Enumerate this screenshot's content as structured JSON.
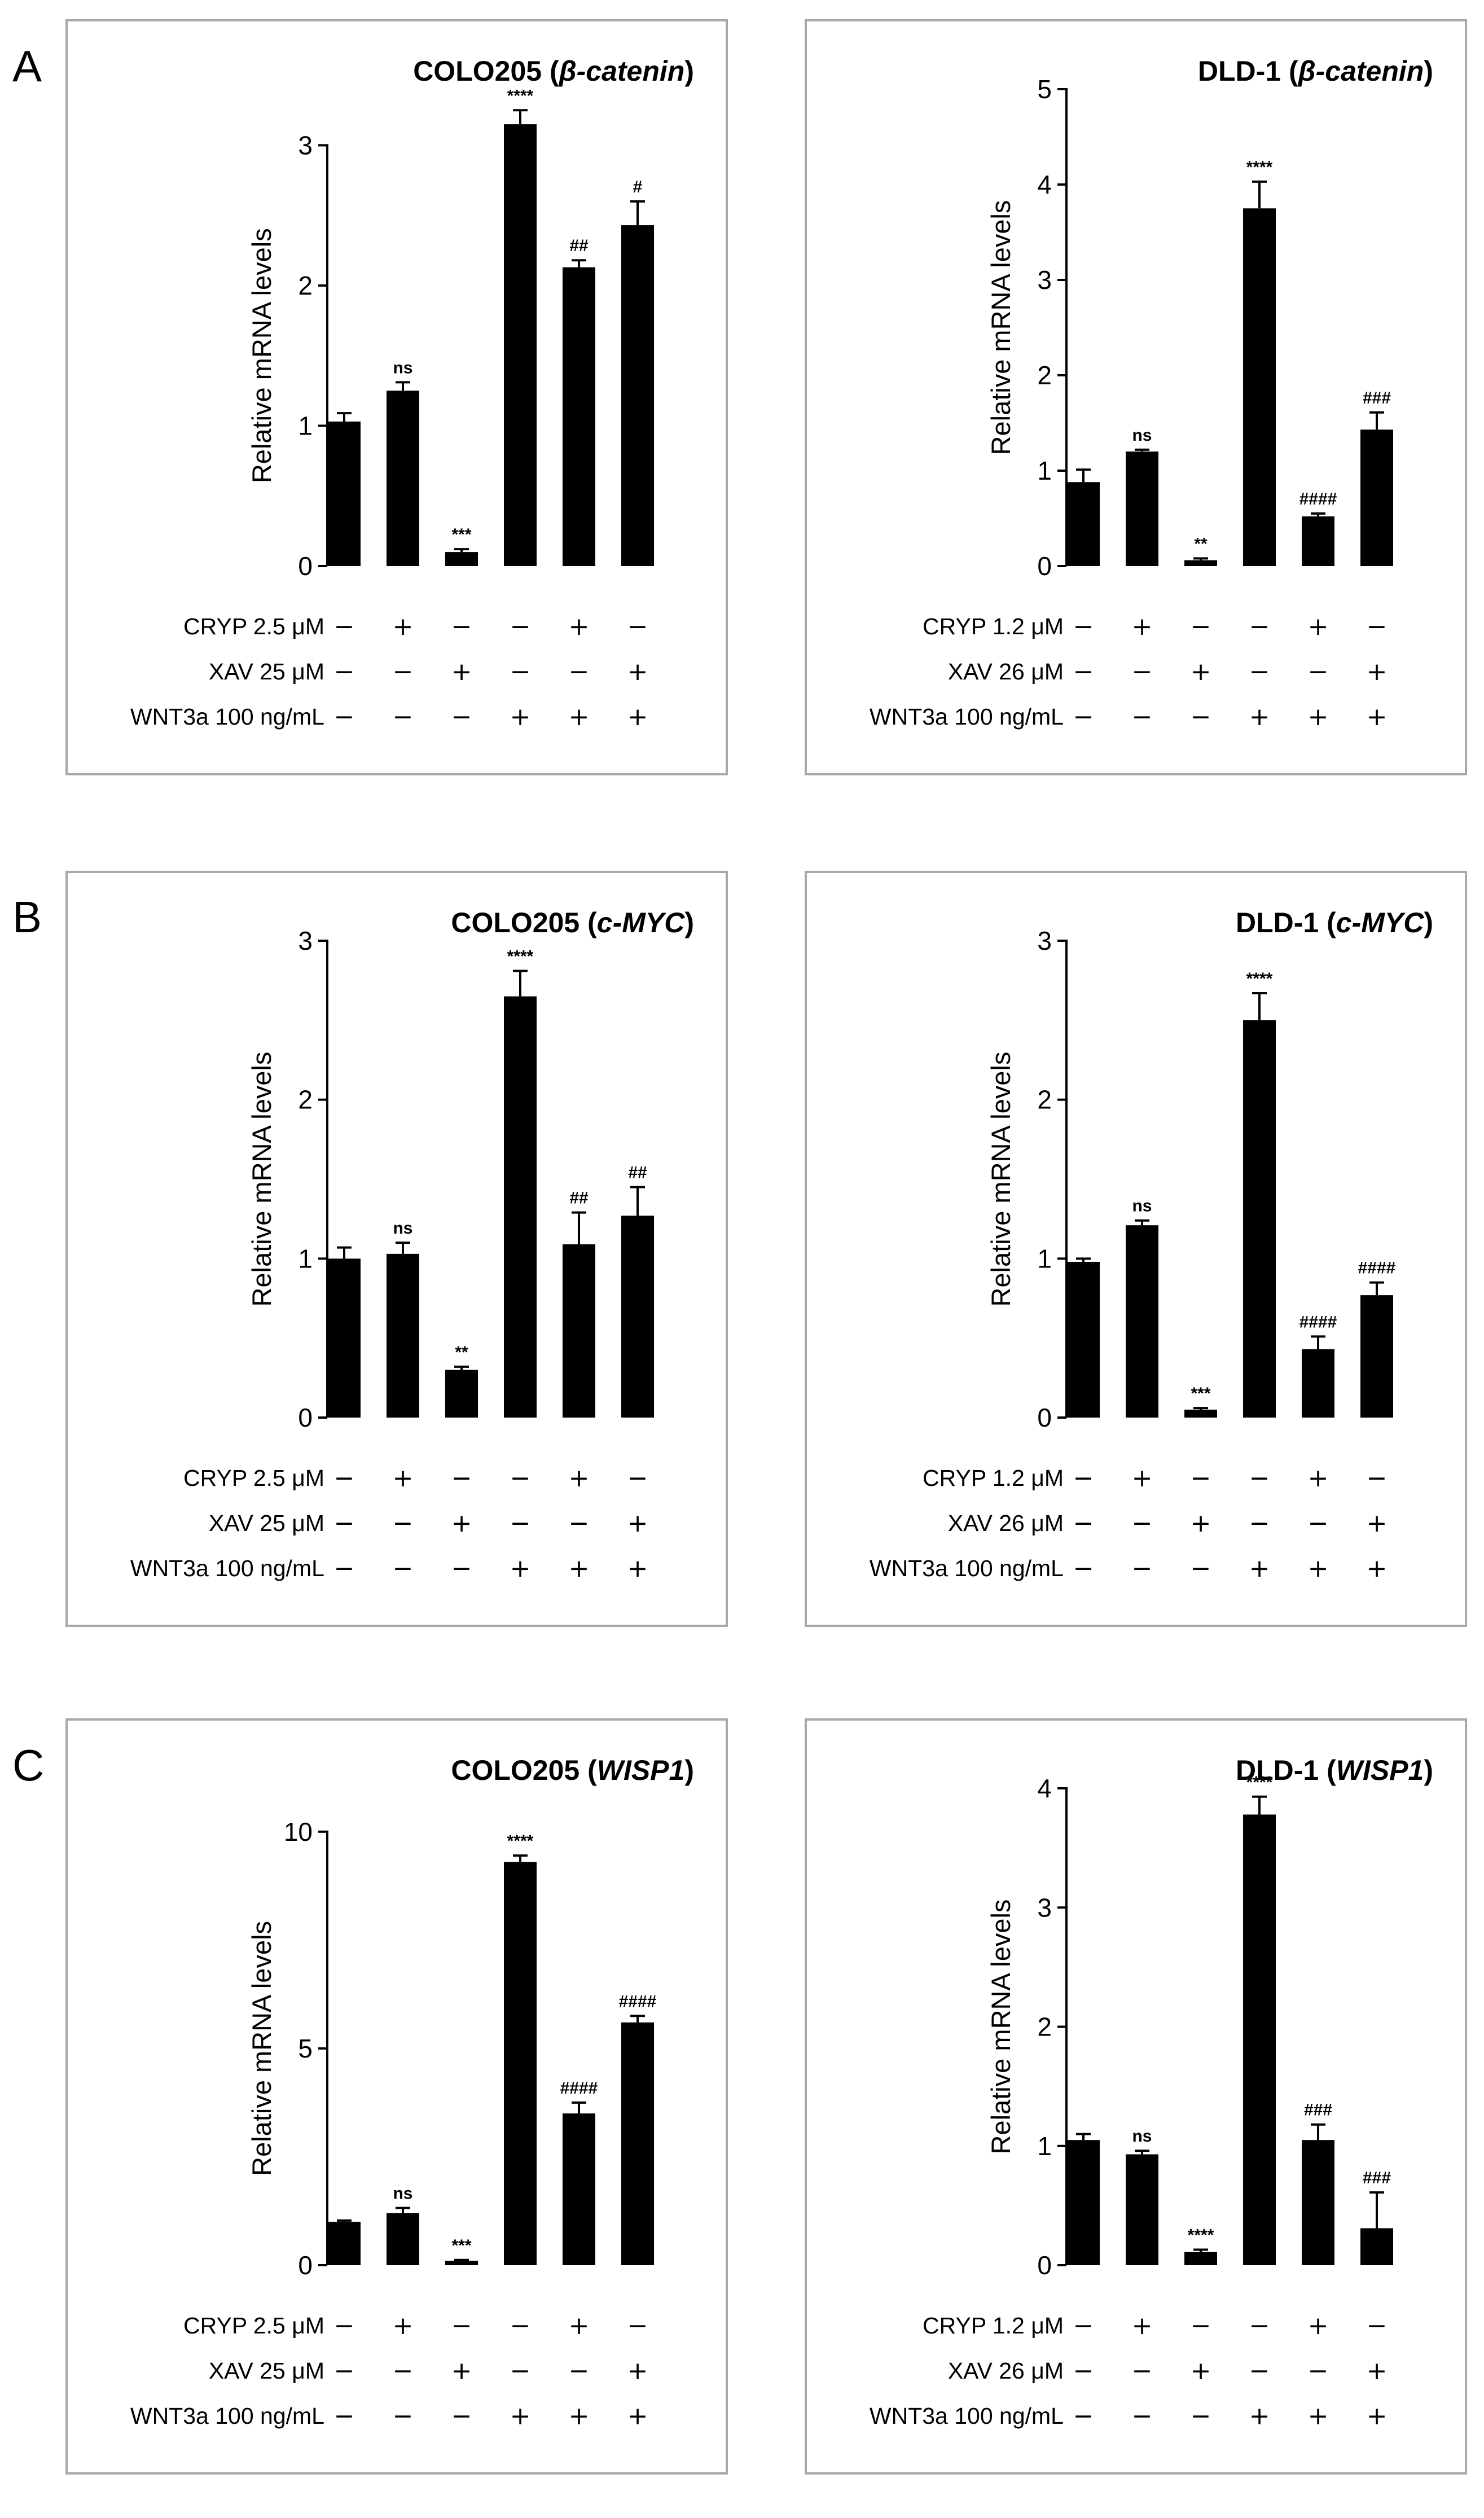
{
  "panel_letters": [
    "A",
    "B",
    "C"
  ],
  "treatment_symbols": {
    "plus": "+",
    "minus": "−"
  },
  "treatment_rows_pattern": [
    [
      "−",
      "+",
      "−",
      "−",
      "+",
      "−"
    ],
    [
      "−",
      "−",
      "+",
      "−",
      "−",
      "+"
    ],
    [
      "−",
      "−",
      "−",
      "+",
      "+",
      "+"
    ]
  ],
  "chart_data": [
    {
      "type": "bar",
      "title_prefix": "COLO205 (",
      "title_gene": "β-catenin",
      "title_suffix": ")",
      "ylabel": "Relative mRNA levels",
      "ylim": [
        0,
        3.4
      ],
      "yticks": [
        0,
        1,
        2,
        3
      ],
      "ytick_labels": [
        "0",
        "1",
        "2",
        "3"
      ],
      "values": [
        1.03,
        1.25,
        0.1,
        3.15,
        2.13,
        2.43
      ],
      "errors": [
        0.06,
        0.06,
        0.02,
        0.1,
        0.05,
        0.17
      ],
      "annotations": [
        "",
        "ns",
        "***",
        "****",
        "##",
        "#"
      ],
      "treatments": [
        {
          "label": "CRYP 2.5 μM",
          "signs": [
            "−",
            "+",
            "−",
            "−",
            "+",
            "−"
          ]
        },
        {
          "label": "XAV 25 μM",
          "signs": [
            "−",
            "−",
            "+",
            "−",
            "−",
            "+"
          ]
        },
        {
          "label": "WNT3a 100 ng/mL",
          "signs": [
            "−",
            "−",
            "−",
            "+",
            "+",
            "+"
          ]
        }
      ]
    },
    {
      "type": "bar",
      "title_prefix": "DLD-1 (",
      "title_gene": "β-catenin",
      "title_suffix": ")",
      "ylabel": "Relative mRNA levels",
      "ylim": [
        0,
        5
      ],
      "yticks": [
        0,
        1,
        2,
        3,
        4,
        5
      ],
      "ytick_labels": [
        "0",
        "1",
        "2",
        "3",
        "4",
        "5"
      ],
      "values": [
        0.88,
        1.2,
        0.06,
        3.75,
        0.52,
        1.43
      ],
      "errors": [
        0.13,
        0.02,
        0.02,
        0.28,
        0.03,
        0.18
      ],
      "annotations": [
        "",
        "ns",
        "**",
        "****",
        "####",
        "###"
      ],
      "treatments": [
        {
          "label": "CRYP 1.2 μM",
          "signs": [
            "−",
            "+",
            "−",
            "−",
            "+",
            "−"
          ]
        },
        {
          "label": "XAV 26 μM",
          "signs": [
            "−",
            "−",
            "+",
            "−",
            "−",
            "+"
          ]
        },
        {
          "label": "WNT3a 100 ng/mL",
          "signs": [
            "−",
            "−",
            "−",
            "+",
            "+",
            "+"
          ]
        }
      ]
    },
    {
      "type": "bar",
      "title_prefix": "COLO205 (",
      "title_gene": "c-MYC",
      "title_suffix": ")",
      "ylabel": "Relative mRNA levels",
      "ylim": [
        0,
        3
      ],
      "yticks": [
        0,
        1,
        2,
        3
      ],
      "ytick_labels": [
        "0",
        "1",
        "2",
        "3"
      ],
      "values": [
        1.0,
        1.03,
        0.3,
        2.65,
        1.09,
        1.27
      ],
      "errors": [
        0.07,
        0.07,
        0.02,
        0.16,
        0.2,
        0.18
      ],
      "annotations": [
        "",
        "ns",
        "**",
        "****",
        "##",
        "##"
      ],
      "treatments": [
        {
          "label": "CRYP 2.5 μM",
          "signs": [
            "−",
            "+",
            "−",
            "−",
            "+",
            "−"
          ]
        },
        {
          "label": "XAV 25 μM",
          "signs": [
            "−",
            "−",
            "+",
            "−",
            "−",
            "+"
          ]
        },
        {
          "label": "WNT3a 100 ng/mL",
          "signs": [
            "−",
            "−",
            "−",
            "+",
            "+",
            "+"
          ]
        }
      ]
    },
    {
      "type": "bar",
      "title_prefix": "DLD-1 (",
      "title_gene": "c-MYC",
      "title_suffix": ")",
      "ylabel": "Relative mRNA levels",
      "ylim": [
        0,
        3
      ],
      "yticks": [
        0,
        1,
        2,
        3
      ],
      "ytick_labels": [
        "0",
        "1",
        "2",
        "3"
      ],
      "values": [
        0.98,
        1.21,
        0.05,
        2.5,
        0.43,
        0.77
      ],
      "errors": [
        0.02,
        0.03,
        0.01,
        0.17,
        0.08,
        0.08
      ],
      "annotations": [
        "",
        "ns",
        "***",
        "****",
        "####",
        "####"
      ],
      "treatments": [
        {
          "label": "CRYP 1.2 μM",
          "signs": [
            "−",
            "+",
            "−",
            "−",
            "+",
            "−"
          ]
        },
        {
          "label": "XAV 26 μM",
          "signs": [
            "−",
            "−",
            "+",
            "−",
            "−",
            "+"
          ]
        },
        {
          "label": "WNT3a 100 ng/mL",
          "signs": [
            "−",
            "−",
            "−",
            "+",
            "+",
            "+"
          ]
        }
      ]
    },
    {
      "type": "bar",
      "title_prefix": "COLO205 (",
      "title_gene": "WISP1",
      "title_suffix": ")",
      "ylabel": "Relative mRNA levels",
      "ylim": [
        0,
        11
      ],
      "yticks": [
        0,
        5,
        10
      ],
      "ytick_labels": [
        "0",
        "5",
        "10"
      ],
      "values": [
        1.0,
        1.2,
        0.1,
        9.3,
        3.5,
        5.6
      ],
      "errors": [
        0.03,
        0.12,
        0.02,
        0.15,
        0.25,
        0.15
      ],
      "annotations": [
        "",
        "ns",
        "***",
        "****",
        "####",
        "####"
      ],
      "treatments": [
        {
          "label": "CRYP 2.5 μM",
          "signs": [
            "−",
            "+",
            "−",
            "−",
            "+",
            "−"
          ]
        },
        {
          "label": "XAV 25 μM",
          "signs": [
            "−",
            "−",
            "+",
            "−",
            "−",
            "+"
          ]
        },
        {
          "label": "WNT3a 100 ng/mL",
          "signs": [
            "−",
            "−",
            "−",
            "+",
            "+",
            "+"
          ]
        }
      ]
    },
    {
      "type": "bar",
      "title_prefix": "DLD-1 (",
      "title_gene": "WISP1",
      "title_suffix": ")",
      "ylabel": "Relative mRNA levels",
      "ylim": [
        0,
        4
      ],
      "yticks": [
        0,
        1,
        2,
        3,
        4
      ],
      "ytick_labels": [
        "0",
        "1",
        "2",
        "3",
        "4"
      ],
      "values": [
        1.05,
        0.93,
        0.11,
        3.78,
        1.05,
        0.31
      ],
      "errors": [
        0.05,
        0.03,
        0.02,
        0.15,
        0.13,
        0.3
      ],
      "annotations": [
        "",
        "ns",
        "****",
        "****",
        "###",
        "###"
      ],
      "treatments": [
        {
          "label": "CRYP 1.2 μM",
          "signs": [
            "−",
            "+",
            "−",
            "−",
            "+",
            "−"
          ]
        },
        {
          "label": "XAV 26 μM",
          "signs": [
            "−",
            "−",
            "+",
            "−",
            "−",
            "+"
          ]
        },
        {
          "label": "WNT3a 100 ng/mL",
          "signs": [
            "−",
            "−",
            "−",
            "+",
            "+",
            "+"
          ]
        }
      ]
    }
  ]
}
